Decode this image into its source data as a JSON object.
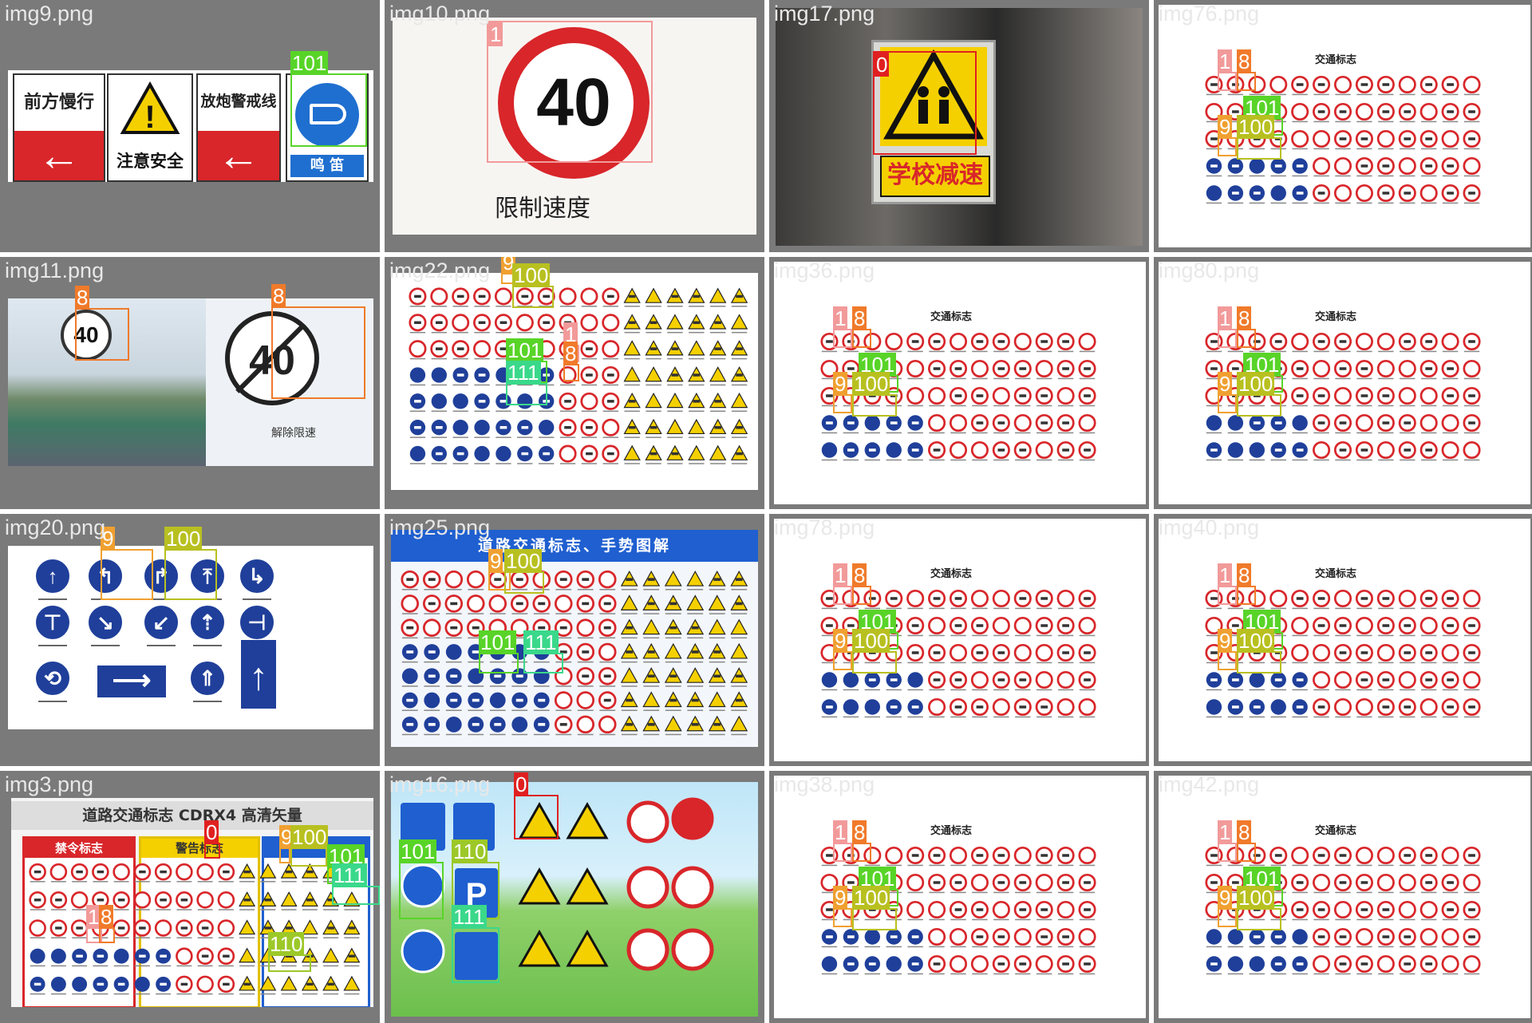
{
  "cells": [
    {
      "file": "img9.png",
      "texts": [
        "前方慢行",
        "注意安全",
        "放炮警戒线",
        "鸣 笛"
      ],
      "boxes": [
        {
          "label": "101"
        }
      ]
    },
    {
      "file": "img10.png",
      "texts": [
        "40",
        "限制速度"
      ],
      "boxes": [
        {
          "label": "1"
        }
      ]
    },
    {
      "file": "img17.png",
      "texts": [
        "学校减速"
      ],
      "boxes": [
        {
          "label": "0"
        }
      ]
    },
    {
      "file": "img76.png",
      "texts": [
        "交通标志"
      ],
      "boxes": [
        {
          "label": "1"
        },
        {
          "label": "8"
        },
        {
          "label": "101"
        },
        {
          "label": "9"
        },
        {
          "label": "100"
        }
      ]
    },
    {
      "file": "img11.png",
      "texts": [
        "40",
        "40",
        "解除限速"
      ],
      "boxes": [
        {
          "label": "8"
        },
        {
          "label": "8"
        }
      ]
    },
    {
      "file": "img22.png",
      "texts": [],
      "boxes": [
        {
          "label": "9"
        },
        {
          "label": "100"
        },
        {
          "label": "1"
        },
        {
          "label": "8"
        },
        {
          "label": "101"
        },
        {
          "label": "111"
        }
      ]
    },
    {
      "file": "img36.png",
      "texts": [
        "交通标志"
      ],
      "boxes": [
        {
          "label": "1"
        },
        {
          "label": "8"
        },
        {
          "label": "101"
        },
        {
          "label": "9"
        },
        {
          "label": "100"
        }
      ]
    },
    {
      "file": "img80.png",
      "texts": [
        "交通标志"
      ],
      "boxes": [
        {
          "label": "1"
        },
        {
          "label": "8"
        },
        {
          "label": "101"
        },
        {
          "label": "9"
        },
        {
          "label": "100"
        }
      ]
    },
    {
      "file": "img20.png",
      "texts": [],
      "boxes": [
        {
          "label": "9"
        },
        {
          "label": "100"
        }
      ]
    },
    {
      "file": "img25.png",
      "texts": [
        "道路交通标志、手势图解"
      ],
      "boxes": [
        {
          "label": "9"
        },
        {
          "label": "100"
        },
        {
          "label": "101"
        },
        {
          "label": "111"
        }
      ]
    },
    {
      "file": "img78.png",
      "texts": [
        "交通标志"
      ],
      "boxes": [
        {
          "label": "1"
        },
        {
          "label": "8"
        },
        {
          "label": "101"
        },
        {
          "label": "9"
        },
        {
          "label": "100"
        }
      ]
    },
    {
      "file": "img40.png",
      "texts": [
        "交通标志"
      ],
      "boxes": [
        {
          "label": "1"
        },
        {
          "label": "8"
        },
        {
          "label": "101"
        },
        {
          "label": "9"
        },
        {
          "label": "100"
        }
      ]
    },
    {
      "file": "img3.png",
      "texts": [
        "道路交通标志 CDRX4 高清矢量",
        "禁令标志",
        "警告标志"
      ],
      "boxes": [
        {
          "label": "0"
        },
        {
          "label": "9"
        },
        {
          "label": "100"
        },
        {
          "label": "101"
        },
        {
          "label": "111"
        },
        {
          "label": "1"
        },
        {
          "label": "8"
        },
        {
          "label": "110"
        }
      ]
    },
    {
      "file": "img16.png",
      "texts": [],
      "boxes": [
        {
          "label": "0"
        },
        {
          "label": "101"
        },
        {
          "label": "110"
        },
        {
          "label": "111"
        }
      ]
    },
    {
      "file": "img38.png",
      "texts": [
        "交通标志"
      ],
      "boxes": [
        {
          "label": "1"
        },
        {
          "label": "8"
        },
        {
          "label": "101"
        },
        {
          "label": "9"
        },
        {
          "label": "100"
        }
      ]
    },
    {
      "file": "img42.png",
      "texts": [
        "交通标志"
      ],
      "boxes": [
        {
          "label": "1"
        },
        {
          "label": "8"
        },
        {
          "label": "101"
        },
        {
          "label": "9"
        },
        {
          "label": "100"
        }
      ]
    }
  ],
  "colors": {
    "grid_bg": "#7a7a7a",
    "sign_red": "#d8262a",
    "sign_blue": "#1f3f9a",
    "warn_yellow": "#f5d000"
  }
}
